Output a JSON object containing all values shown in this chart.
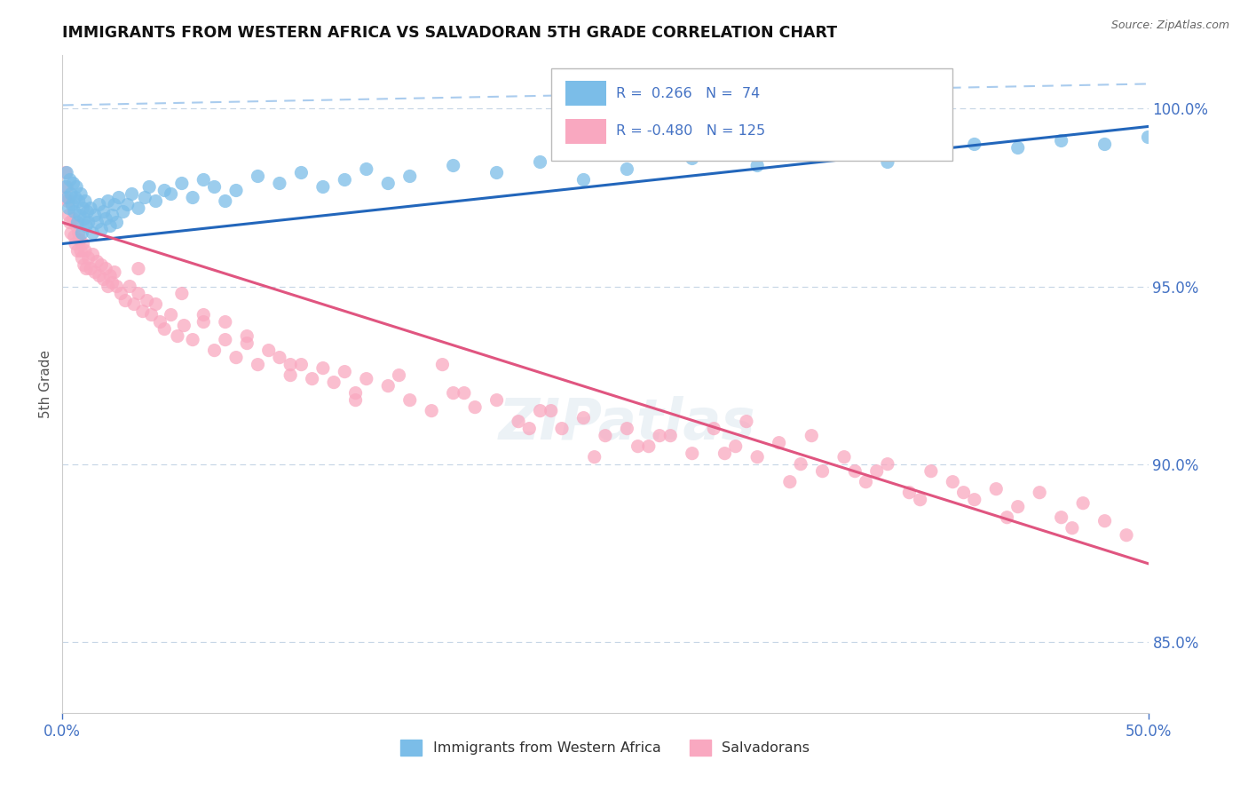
{
  "title": "IMMIGRANTS FROM WESTERN AFRICA VS SALVADORAN 5TH GRADE CORRELATION CHART",
  "source": "Source: ZipAtlas.com",
  "ylabel": "5th Grade",
  "xmin": 0.0,
  "xmax": 50.0,
  "ymin": 83.0,
  "ymax": 101.5,
  "yticks": [
    85.0,
    90.0,
    95.0,
    100.0
  ],
  "ytick_labels": [
    "85.0%",
    "90.0%",
    "95.0%",
    "100.0%"
  ],
  "blue_R": 0.266,
  "blue_N": 74,
  "pink_R": -0.48,
  "pink_N": 125,
  "blue_color": "#7bbde8",
  "pink_color": "#f9a8c0",
  "blue_line_color": "#2266bb",
  "pink_line_color": "#e05580",
  "dashed_line_color": "#aaccee",
  "legend_label_blue": "Immigrants from Western Africa",
  "legend_label_pink": "Salvadorans",
  "blue_line_x0": 0.0,
  "blue_line_x1": 50.0,
  "blue_line_y0": 96.2,
  "blue_line_y1": 99.5,
  "pink_line_x0": 0.0,
  "pink_line_x1": 50.0,
  "pink_line_y0": 96.8,
  "pink_line_y1": 87.2,
  "dashed_line_y0": 100.1,
  "dashed_line_y1": 100.7,
  "blue_scatter_x": [
    0.15,
    0.2,
    0.25,
    0.3,
    0.35,
    0.4,
    0.45,
    0.5,
    0.55,
    0.6,
    0.65,
    0.7,
    0.75,
    0.8,
    0.85,
    0.9,
    0.95,
    1.0,
    1.05,
    1.1,
    1.15,
    1.2,
    1.3,
    1.4,
    1.5,
    1.6,
    1.7,
    1.8,
    1.9,
    2.0,
    2.1,
    2.2,
    2.3,
    2.4,
    2.5,
    2.6,
    2.8,
    3.0,
    3.2,
    3.5,
    3.8,
    4.0,
    4.3,
    4.7,
    5.0,
    5.5,
    6.0,
    6.5,
    7.0,
    7.5,
    8.0,
    9.0,
    10.0,
    11.0,
    12.0,
    13.0,
    14.0,
    15.0,
    16.0,
    18.0,
    20.0,
    22.0,
    24.0,
    26.0,
    29.0,
    32.0,
    35.0,
    38.0,
    40.0,
    42.0,
    44.0,
    46.0,
    48.0,
    50.0
  ],
  "blue_scatter_y": [
    97.8,
    98.2,
    97.5,
    97.2,
    98.0,
    97.6,
    97.3,
    97.9,
    97.1,
    97.5,
    97.8,
    96.8,
    97.4,
    97.0,
    97.6,
    96.5,
    97.2,
    96.9,
    97.4,
    96.7,
    97.1,
    96.8,
    97.2,
    96.5,
    97.0,
    96.8,
    97.3,
    96.6,
    97.1,
    96.9,
    97.4,
    96.7,
    97.0,
    97.3,
    96.8,
    97.5,
    97.1,
    97.3,
    97.6,
    97.2,
    97.5,
    97.8,
    97.4,
    97.7,
    97.6,
    97.9,
    97.5,
    98.0,
    97.8,
    97.4,
    97.7,
    98.1,
    97.9,
    98.2,
    97.8,
    98.0,
    98.3,
    97.9,
    98.1,
    98.4,
    98.2,
    98.5,
    98.0,
    98.3,
    98.6,
    98.4,
    98.7,
    98.5,
    98.8,
    99.0,
    98.9,
    99.1,
    99.0,
    99.2
  ],
  "pink_scatter_x": [
    0.1,
    0.15,
    0.2,
    0.25,
    0.3,
    0.35,
    0.4,
    0.5,
    0.55,
    0.6,
    0.65,
    0.7,
    0.75,
    0.8,
    0.85,
    0.9,
    0.95,
    1.0,
    1.05,
    1.1,
    1.2,
    1.3,
    1.4,
    1.5,
    1.6,
    1.7,
    1.8,
    1.9,
    2.0,
    2.1,
    2.2,
    2.3,
    2.4,
    2.5,
    2.7,
    2.9,
    3.1,
    3.3,
    3.5,
    3.7,
    3.9,
    4.1,
    4.3,
    4.5,
    4.7,
    5.0,
    5.3,
    5.6,
    6.0,
    6.5,
    7.0,
    7.5,
    8.0,
    8.5,
    9.0,
    9.5,
    10.0,
    10.5,
    11.0,
    11.5,
    12.0,
    12.5,
    13.0,
    13.5,
    14.0,
    15.0,
    16.0,
    17.0,
    18.0,
    19.0,
    20.0,
    21.0,
    22.0,
    23.0,
    24.0,
    25.0,
    26.0,
    27.0,
    28.0,
    29.0,
    30.0,
    31.0,
    32.0,
    33.0,
    34.0,
    35.0,
    36.0,
    37.0,
    38.0,
    39.0,
    40.0,
    41.0,
    42.0,
    43.0,
    44.0,
    45.0,
    46.0,
    47.0,
    48.0,
    49.0,
    6.5,
    8.5,
    10.5,
    13.5,
    15.5,
    18.5,
    21.5,
    24.5,
    27.5,
    30.5,
    33.5,
    36.5,
    39.5,
    3.5,
    5.5,
    7.5,
    17.5,
    22.5,
    26.5,
    31.5,
    34.5,
    37.5,
    41.5,
    43.5,
    46.5
  ],
  "pink_scatter_y": [
    97.5,
    98.2,
    97.8,
    97.4,
    97.0,
    96.8,
    96.5,
    96.9,
    96.4,
    96.2,
    96.7,
    96.0,
    96.5,
    96.3,
    96.0,
    95.8,
    96.2,
    95.6,
    96.0,
    95.5,
    95.8,
    95.5,
    95.9,
    95.4,
    95.7,
    95.3,
    95.6,
    95.2,
    95.5,
    95.0,
    95.3,
    95.1,
    95.4,
    95.0,
    94.8,
    94.6,
    95.0,
    94.5,
    94.8,
    94.3,
    94.6,
    94.2,
    94.5,
    94.0,
    93.8,
    94.2,
    93.6,
    93.9,
    93.5,
    94.0,
    93.2,
    93.5,
    93.0,
    93.4,
    92.8,
    93.2,
    93.0,
    92.5,
    92.8,
    92.4,
    92.7,
    92.3,
    92.6,
    92.0,
    92.4,
    92.2,
    91.8,
    91.5,
    92.0,
    91.6,
    91.8,
    91.2,
    91.5,
    91.0,
    91.3,
    90.8,
    91.0,
    90.5,
    90.8,
    90.3,
    91.0,
    90.5,
    90.2,
    90.6,
    90.0,
    89.8,
    90.2,
    89.5,
    90.0,
    89.2,
    89.8,
    89.5,
    89.0,
    89.3,
    88.8,
    89.2,
    88.5,
    88.9,
    88.4,
    88.0,
    94.2,
    93.6,
    92.8,
    91.8,
    92.5,
    92.0,
    91.0,
    90.2,
    90.8,
    90.3,
    89.5,
    89.8,
    89.0,
    95.5,
    94.8,
    94.0,
    92.8,
    91.5,
    90.5,
    91.2,
    90.8,
    89.8,
    89.2,
    88.5,
    88.2
  ]
}
